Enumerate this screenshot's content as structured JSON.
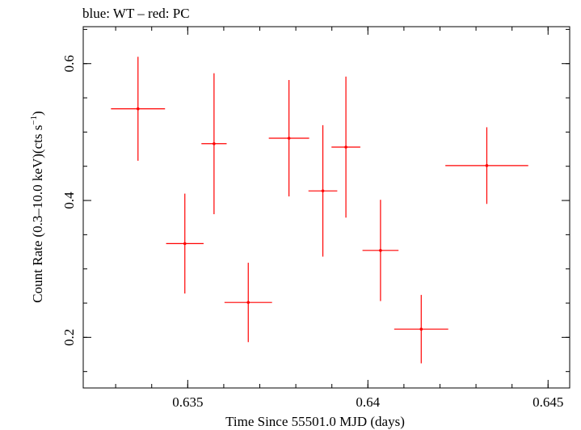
{
  "chart_data": {
    "type": "scatter",
    "title": "blue: WT – red: PC",
    "xlabel": "Time Since 55501.0 MJD (days)",
    "ylabel_main": "Count Rate (0.3–10.0 keV)(cts s",
    "ylabel_sup": "−1",
    "ylabel_close": ")",
    "xlim": [
      0.6321,
      0.6456
    ],
    "ylim": [
      0.126,
      0.654
    ],
    "x_ticks": [
      {
        "value": 0.635,
        "label": "0.635"
      },
      {
        "value": 0.64,
        "label": "0.64"
      },
      {
        "value": 0.645,
        "label": "0.645"
      }
    ],
    "y_ticks": [
      {
        "value": 0.2,
        "label": "0.2"
      },
      {
        "value": 0.4,
        "label": "0.4"
      },
      {
        "value": 0.6,
        "label": "0.6"
      }
    ],
    "x_minor_step": 0.001,
    "y_minor_step": 0.05,
    "grid": false,
    "series": [
      {
        "color": "#ff0000",
        "points": [
          {
            "x": 0.63362,
            "xerr": 0.00075,
            "y": 0.534,
            "yerr": 0.076
          },
          {
            "x": 0.63492,
            "xerr": 0.00052,
            "y": 0.337,
            "yerr": 0.073
          },
          {
            "x": 0.63573,
            "xerr": 0.00035,
            "y": 0.483,
            "yerr": 0.103
          },
          {
            "x": 0.63668,
            "xerr": 0.00066,
            "y": 0.251,
            "yerr": 0.058
          },
          {
            "x": 0.63781,
            "xerr": 0.00056,
            "y": 0.491,
            "yerr": 0.085
          },
          {
            "x": 0.63875,
            "xerr": 0.0004,
            "y": 0.414,
            "yerr": 0.096
          },
          {
            "x": 0.63939,
            "xerr": 0.0004,
            "y": 0.478,
            "yerr": 0.103
          },
          {
            "x": 0.64035,
            "xerr": 0.0005,
            "y": 0.327,
            "yerr": 0.074
          },
          {
            "x": 0.64148,
            "xerr": 0.00075,
            "y": 0.212,
            "yerr": 0.05
          },
          {
            "x": 0.6433,
            "xerr": 0.00115,
            "y": 0.451,
            "yerr": 0.056
          }
        ]
      }
    ]
  }
}
